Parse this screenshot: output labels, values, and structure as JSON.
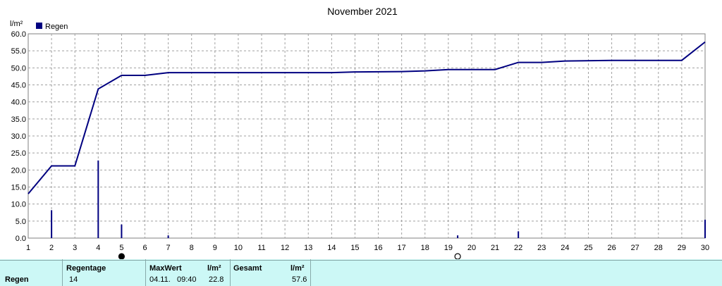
{
  "chart_data": {
    "type": "line",
    "title": "November 2021",
    "ylabel": "l/m²",
    "legend": {
      "label": "Regen",
      "placement": "top-left",
      "color": "#000080"
    },
    "grid": true,
    "xlim": [
      1,
      30
    ],
    "ylim": [
      0,
      60
    ],
    "x_ticks": [
      1,
      2,
      3,
      4,
      5,
      6,
      7,
      8,
      9,
      10,
      11,
      12,
      13,
      14,
      15,
      16,
      17,
      18,
      19,
      20,
      21,
      22,
      23,
      24,
      25,
      26,
      27,
      28,
      29,
      30
    ],
    "y_ticks": [
      "0.0",
      "5.0",
      "10.0",
      "15.0",
      "20.0",
      "25.0",
      "30.0",
      "35.0",
      "40.0",
      "45.0",
      "50.0",
      "55.0",
      "60.0"
    ],
    "series": [
      {
        "name": "Regen",
        "kind": "cumulative-line",
        "color": "#000080",
        "points": [
          [
            1,
            13.0
          ],
          [
            2,
            21.2
          ],
          [
            3,
            21.2
          ],
          [
            4,
            43.8
          ],
          [
            5,
            47.8
          ],
          [
            6,
            47.8
          ],
          [
            7,
            48.6
          ],
          [
            14,
            48.6
          ],
          [
            15,
            48.8
          ],
          [
            17,
            48.9
          ],
          [
            18,
            49.1
          ],
          [
            19,
            49.5
          ],
          [
            21,
            49.5
          ],
          [
            22,
            51.6
          ],
          [
            23,
            51.6
          ],
          [
            24,
            52.0
          ],
          [
            26,
            52.2
          ],
          [
            29,
            52.2
          ],
          [
            30,
            57.6
          ]
        ]
      },
      {
        "name": "Regen",
        "kind": "daily-bars",
        "color": "#000080",
        "points": [
          [
            2,
            8.2
          ],
          [
            4,
            22.8
          ],
          [
            5,
            4.0
          ],
          [
            7,
            0.8
          ],
          [
            19.4,
            0.8
          ],
          [
            22,
            2.0
          ],
          [
            30,
            5.4
          ]
        ]
      }
    ],
    "moon_phases": [
      {
        "x": 5,
        "phase": "new-moon-icon"
      },
      {
        "x": 19.4,
        "phase": "full-moon-icon"
      }
    ]
  },
  "summary": {
    "row_label": "Regen",
    "headers": {
      "days": "Regentage",
      "max": "MaxWert",
      "max_unit": "l/m²",
      "total": "Gesamt",
      "total_unit": "l/m²"
    },
    "values": {
      "days": "14",
      "max_date": "04.11.",
      "max_time": "09:40",
      "max_value": "22.8",
      "total": "57.6"
    }
  }
}
